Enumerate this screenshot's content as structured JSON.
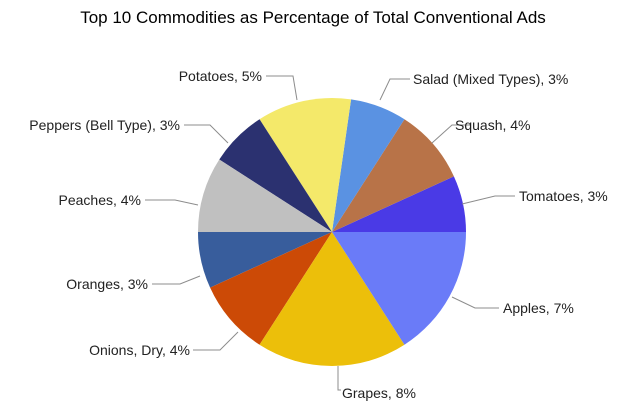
{
  "chart_data": {
    "type": "pie",
    "title": "Top 10 Commodities as Percentage of Total Conventional Ads",
    "start": "3 o'clock, counterclockwise",
    "unit": "%",
    "slices": [
      {
        "label": "Tomatoes",
        "value": 3,
        "text": "Tomatoes, 3%",
        "color": "#4a3ae6"
      },
      {
        "label": "Squash",
        "value": 4,
        "text": "Squash, 4%",
        "color": "#b87348"
      },
      {
        "label": "Salad (Mixed Types)",
        "value": 3,
        "text": "Salad (Mixed Types), 3%",
        "color": "#5a92e2"
      },
      {
        "label": "Potatoes",
        "value": 5,
        "text": "Potatoes, 5%",
        "color": "#f4e96a"
      },
      {
        "label": "Peppers (Bell Type)",
        "value": 3,
        "text": "Peppers (Bell Type), 3%",
        "color": "#2b3170"
      },
      {
        "label": "Peaches",
        "value": 4,
        "text": "Peaches, 4%",
        "color": "#c0c0c0"
      },
      {
        "label": "Oranges",
        "value": 3,
        "text": "Oranges, 3%",
        "color": "#385d9c"
      },
      {
        "label": "Onions, Dry",
        "value": 4,
        "text": "Onions, Dry, 4%",
        "color": "#cc4a06"
      },
      {
        "label": "Grapes",
        "value": 8,
        "text": "Grapes, 8%",
        "color": "#ecbf0a"
      },
      {
        "label": "Apples",
        "value": 7,
        "text": "Apples, 7%",
        "color": "#6a7bf8"
      }
    ],
    "legend": "none (data labels with leader lines)"
  }
}
